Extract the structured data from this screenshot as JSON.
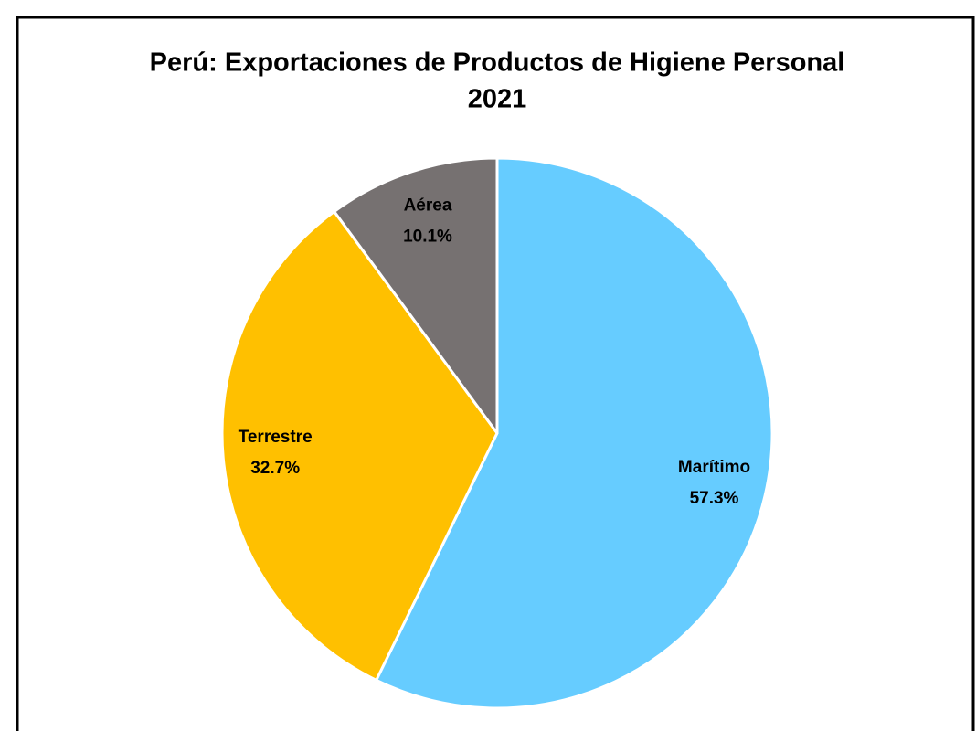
{
  "chart_data": {
    "type": "pie",
    "title": "Perú: Exportaciones de Productos de Higiene Personal",
    "subtitle": "2021",
    "categories": [
      "Marítimo",
      "Terrestre",
      "Aérea"
    ],
    "values": [
      57.3,
      32.7,
      10.1
    ],
    "value_labels": [
      "57.3%",
      "32.7%",
      "10.1%"
    ],
    "colors": [
      "#66ccff",
      "#ffc000",
      "#767171"
    ]
  }
}
